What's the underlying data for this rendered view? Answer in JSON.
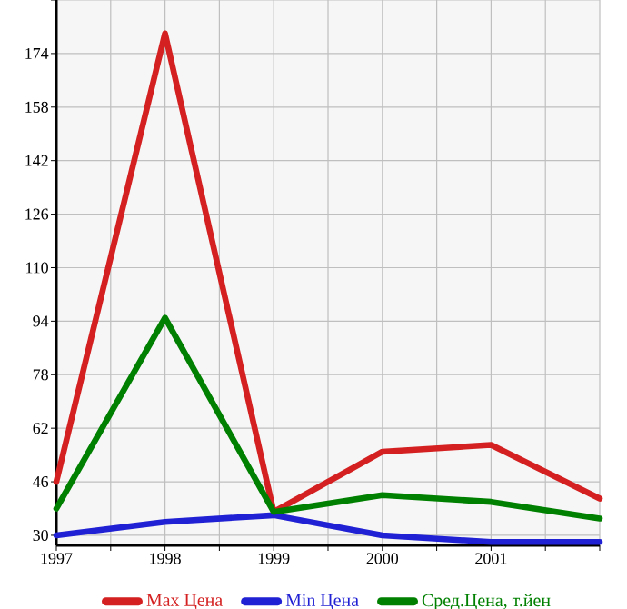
{
  "chart_data": {
    "type": "line",
    "x": [
      1997,
      1998,
      1999,
      2000,
      2001,
      2002
    ],
    "series": [
      {
        "name": "Max Цена",
        "color": "#d42020",
        "values": [
          46,
          180,
          37,
          55,
          57,
          41
        ]
      },
      {
        "name": "Min Цена",
        "color": "#2020d4",
        "values": [
          30,
          34,
          36,
          30,
          28,
          28
        ]
      },
      {
        "name": "Сред.Цена, т.йен",
        "color": "#008000",
        "values": [
          38,
          95,
          37,
          42,
          40,
          35
        ]
      }
    ],
    "xlim": [
      1997,
      2002
    ],
    "xticks": [
      1997,
      {
        "value": 1997.5,
        "label": null
      },
      1998,
      {
        "value": 1998.5,
        "label": null
      },
      1999,
      {
        "value": 1999.5,
        "label": null
      },
      2000,
      {
        "value": 2000.5,
        "label": null
      },
      2001,
      {
        "value": 2001.5,
        "label": null
      },
      {
        "value": 2002,
        "label": null
      }
    ],
    "ylim": [
      27,
      190
    ],
    "yticks": [
      30,
      46,
      62,
      78,
      94,
      110,
      126,
      142,
      158,
      174,
      {
        "value": 190,
        "label": null
      }
    ],
    "grid": true,
    "legend": "bottom",
    "marker": "none",
    "line_style": "solid"
  }
}
